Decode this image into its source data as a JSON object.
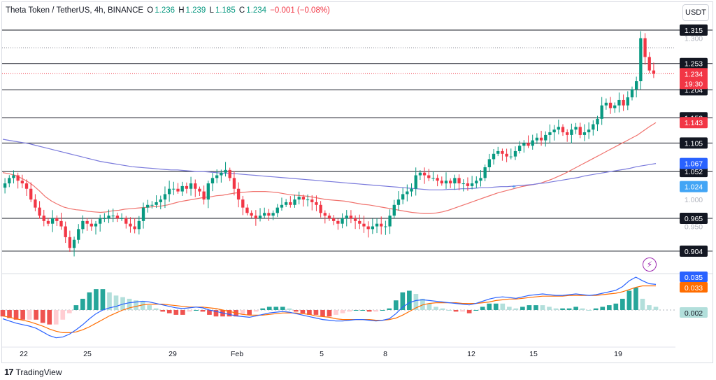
{
  "header": {
    "symbol": "Theta Token / TetherUS, 4h, BINANCE",
    "o_label": "O",
    "o_value": "1.236",
    "h_label": "H",
    "h_value": "1.239",
    "l_label": "L",
    "l_value": "1.185",
    "c_label": "C",
    "c_value": "1.234",
    "change": "−0.001 (−0.08%)"
  },
  "currency_button": "USDT",
  "footer": {
    "brand_mark": "17",
    "brand": "TradingView"
  },
  "colors": {
    "up": "#089981",
    "down": "#f23645",
    "ma_fast": "#f0736e",
    "ma_slow": "#7b7bdc",
    "macd": "#2962ff",
    "signal": "#ff6d00",
    "level_line": "#131722",
    "hist_up_strong": "#26a69a",
    "hist_up_weak": "#b2dfdb",
    "hist_down_strong": "#ef5350",
    "hist_down_weak": "#ffcdd2"
  },
  "chart_data": {
    "type": "candlestick",
    "x_labels": [
      "22",
      "25",
      "29",
      "Feb",
      "5",
      "8",
      "12",
      "15",
      "19"
    ],
    "y_ticks": [
      "1.300",
      "1.000",
      "0.950"
    ],
    "ylim": [
      0.87,
      1.345
    ],
    "horizontal_levels": [
      1.315,
      1.253,
      1.204,
      1.152,
      1.105,
      1.052,
      0.965,
      0.904
    ],
    "level_labels": [
      "1.315",
      "1.253",
      "1.204",
      "1.152",
      "1.105",
      "1.052",
      "0.965",
      "0.904"
    ],
    "current_price": {
      "value": 1.234,
      "label": "1.234",
      "countdown": "19:30",
      "color": "#f23645"
    },
    "badges": [
      {
        "value": 1.143,
        "label": "1.143",
        "color": "#f23645"
      },
      {
        "value": 1.067,
        "label": "1.067",
        "color": "#2962ff"
      },
      {
        "value": 1.024,
        "label": "1.024",
        "color": "#42a5f5"
      }
    ],
    "closes": [
      1.03,
      1.04,
      1.045,
      1.035,
      1.03,
      1.02,
      1.0,
      0.985,
      0.97,
      0.96,
      0.955,
      0.965,
      0.96,
      0.95,
      0.93,
      0.91,
      0.925,
      0.945,
      0.96,
      0.955,
      0.95,
      0.955,
      0.965,
      0.965,
      0.97,
      0.97,
      0.965,
      0.965,
      0.955,
      0.95,
      0.945,
      0.96,
      0.985,
      0.99,
      0.99,
      0.995,
      1.0,
      1.01,
      1.02,
      1.02,
      1.015,
      1.025,
      1.02,
      1.03,
      1.02,
      1.015,
      1.0,
      1.03,
      1.04,
      1.045,
      1.05,
      1.055,
      1.04,
      1.02,
      1.0,
      0.985,
      0.975,
      0.97,
      0.965,
      0.97,
      0.975,
      0.97,
      0.975,
      0.985,
      0.99,
      0.995,
      0.99,
      1.0,
      1.005,
      1.0,
      1.0,
      0.995,
      0.99,
      0.975,
      0.97,
      0.965,
      0.96,
      0.955,
      0.965,
      0.97,
      0.965,
      0.96,
      0.955,
      0.95,
      0.945,
      0.95,
      0.955,
      0.95,
      0.95,
      0.97,
      0.99,
      1.0,
      1.01,
      1.015,
      1.02,
      1.045,
      1.05,
      1.045,
      1.04,
      1.04,
      1.035,
      1.03,
      1.035,
      1.03,
      1.04,
      1.03,
      1.03,
      1.025,
      1.03,
      1.035,
      1.04,
      1.06,
      1.075,
      1.085,
      1.09,
      1.085,
      1.08,
      1.08,
      1.09,
      1.1,
      1.105,
      1.1,
      1.11,
      1.115,
      1.11,
      1.12,
      1.125,
      1.13,
      1.135,
      1.125,
      1.12,
      1.13,
      1.135,
      1.12,
      1.125,
      1.13,
      1.14,
      1.15,
      1.175,
      1.18,
      1.17,
      1.175,
      1.185,
      1.175,
      1.19,
      1.205,
      1.22,
      1.3,
      1.265,
      1.24,
      1.234
    ],
    "ma_fast": [
      1.05,
      1.048,
      1.045,
      1.04,
      1.034,
      1.026,
      1.016,
      1.005,
      0.997,
      0.991,
      0.986,
      0.983,
      0.981,
      0.98,
      0.978,
      0.977,
      0.976,
      0.977,
      0.979,
      0.98,
      0.982,
      0.983,
      0.984,
      0.985,
      0.986,
      0.987,
      0.988,
      0.99,
      0.993,
      0.996,
      0.998,
      1.0,
      1.002,
      1.004,
      1.005,
      1.007,
      1.008,
      1.01,
      1.012,
      1.013,
      1.014,
      1.015,
      1.015,
      1.015,
      1.014,
      1.013,
      1.011,
      1.009,
      1.008,
      1.007,
      1.006,
      1.004,
      1.002,
      1.0,
      0.999,
      0.998,
      0.997,
      0.995,
      0.993,
      0.991,
      0.99,
      0.988,
      0.986,
      0.984,
      0.982,
      0.98,
      0.978,
      0.976,
      0.975,
      0.974,
      0.974,
      0.975,
      0.977,
      0.98,
      0.984,
      0.988,
      0.992,
      0.996,
      1.0,
      1.004,
      1.008,
      1.012,
      1.015,
      1.018,
      1.021,
      1.024,
      1.026,
      1.028,
      1.03,
      1.034,
      1.038,
      1.043,
      1.048,
      1.054,
      1.06,
      1.066,
      1.072,
      1.078,
      1.084,
      1.09,
      1.096,
      1.102,
      1.108,
      1.114,
      1.12,
      1.128,
      1.136,
      1.143
    ],
    "ma_slow": [
      1.112,
      1.11,
      1.108,
      1.106,
      1.104,
      1.101,
      1.098,
      1.095,
      1.092,
      1.089,
      1.086,
      1.083,
      1.08,
      1.077,
      1.074,
      1.071,
      1.069,
      1.067,
      1.065,
      1.063,
      1.061,
      1.06,
      1.059,
      1.058,
      1.057,
      1.056,
      1.055,
      1.055,
      1.054,
      1.053,
      1.052,
      1.052,
      1.051,
      1.05,
      1.049,
      1.049,
      1.048,
      1.047,
      1.046,
      1.045,
      1.044,
      1.043,
      1.042,
      1.041,
      1.04,
      1.039,
      1.038,
      1.037,
      1.036,
      1.035,
      1.034,
      1.033,
      1.032,
      1.031,
      1.03,
      1.029,
      1.028,
      1.027,
      1.026,
      1.025,
      1.024,
      1.023,
      1.022,
      1.021,
      1.02,
      1.019,
      1.018,
      1.018,
      1.018,
      1.019,
      1.019,
      1.02,
      1.02,
      1.021,
      1.022,
      1.022,
      1.023,
      1.024,
      1.024,
      1.025,
      1.026,
      1.027,
      1.028,
      1.03,
      1.031,
      1.033,
      1.035,
      1.037,
      1.039,
      1.041,
      1.044,
      1.046,
      1.048,
      1.05,
      1.052,
      1.054,
      1.056,
      1.058,
      1.061,
      1.063,
      1.065,
      1.067
    ],
    "macd": {
      "badges": [
        {
          "value": 0.035,
          "label": "0.035",
          "color": "#2962ff"
        },
        {
          "value": 0.033,
          "label": "0.033",
          "color": "#ff6d00"
        },
        {
          "value": 0.002,
          "label": "0.002",
          "color": "#b2dfdb"
        }
      ],
      "ylim": [
        -0.045,
        0.045
      ],
      "macd_line": [
        -0.012,
        -0.015,
        -0.018,
        -0.02,
        -0.022,
        -0.025,
        -0.03,
        -0.035,
        -0.038,
        -0.037,
        -0.033,
        -0.027,
        -0.02,
        -0.012,
        -0.005,
        0.0,
        0.003,
        0.005,
        0.008,
        0.01,
        0.011,
        0.012,
        0.011,
        0.009,
        0.007,
        0.005,
        0.003,
        0.002,
        0.003,
        0.004,
        0.003,
        0.0,
        -0.002,
        -0.004,
        -0.006,
        -0.008,
        -0.009,
        -0.01,
        -0.008,
        -0.006,
        -0.004,
        -0.003,
        -0.002,
        -0.003,
        -0.005,
        -0.007,
        -0.009,
        -0.011,
        -0.013,
        -0.014,
        -0.015,
        -0.015,
        -0.014,
        -0.013,
        -0.013,
        -0.014,
        -0.015,
        -0.014,
        -0.012,
        -0.005,
        0.004,
        0.01,
        0.013,
        0.014,
        0.013,
        0.012,
        0.011,
        0.01,
        0.009,
        0.008,
        0.007,
        0.009,
        0.012,
        0.015,
        0.017,
        0.018,
        0.017,
        0.016,
        0.018,
        0.02,
        0.021,
        0.022,
        0.021,
        0.02,
        0.02,
        0.021,
        0.022,
        0.021,
        0.02,
        0.021,
        0.023,
        0.025,
        0.027,
        0.032,
        0.04,
        0.045,
        0.04,
        0.036,
        0.035
      ],
      "signal_line": [
        -0.008,
        -0.01,
        -0.012,
        -0.014,
        -0.016,
        -0.019,
        -0.022,
        -0.026,
        -0.029,
        -0.031,
        -0.031,
        -0.03,
        -0.027,
        -0.023,
        -0.018,
        -0.013,
        -0.008,
        -0.004,
        0.0,
        0.003,
        0.005,
        0.007,
        0.008,
        0.008,
        0.008,
        0.007,
        0.006,
        0.005,
        0.004,
        0.004,
        0.004,
        0.003,
        0.002,
        0.0,
        -0.002,
        -0.004,
        -0.006,
        -0.007,
        -0.007,
        -0.007,
        -0.006,
        -0.005,
        -0.004,
        -0.004,
        -0.004,
        -0.005,
        -0.006,
        -0.008,
        -0.009,
        -0.01,
        -0.012,
        -0.013,
        -0.013,
        -0.013,
        -0.013,
        -0.013,
        -0.014,
        -0.014,
        -0.013,
        -0.011,
        -0.007,
        -0.002,
        0.003,
        0.007,
        0.009,
        0.01,
        0.01,
        0.01,
        0.01,
        0.009,
        0.009,
        0.009,
        0.01,
        0.011,
        0.013,
        0.014,
        0.015,
        0.015,
        0.016,
        0.017,
        0.018,
        0.019,
        0.019,
        0.019,
        0.019,
        0.02,
        0.02,
        0.02,
        0.02,
        0.02,
        0.021,
        0.022,
        0.023,
        0.025,
        0.028,
        0.031,
        0.033,
        0.033,
        0.033
      ]
    }
  }
}
